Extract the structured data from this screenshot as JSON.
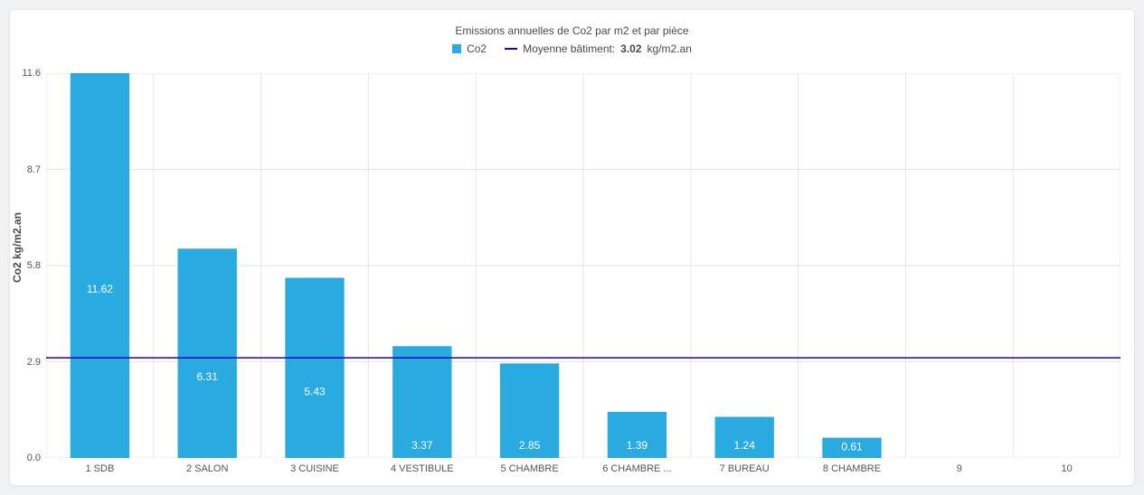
{
  "chart": {
    "type": "bar",
    "title": "Emissions annuelles de Co2 par m2 et par pièce",
    "legend": {
      "series_label": "Co2",
      "avg_label_prefix": "Moyenne bâtiment:",
      "avg_value": "3.02",
      "avg_unit": "kg/m2.an"
    },
    "ylabel": "Co2 kg/m2.an",
    "ylim": [
      0.0,
      11.6
    ],
    "yticks": [
      0.0,
      2.9,
      5.8,
      8.7,
      11.6
    ],
    "categories": [
      "1 SDB",
      "2 SALON",
      "3 CUISINE",
      "4 VESTIBULE",
      "5 CHAMBRE",
      "6 CHAMBRE ...",
      "7 BUREAU",
      "8 CHAMBRE",
      "9",
      "10"
    ],
    "values": [
      11.62,
      6.31,
      5.43,
      3.37,
      2.85,
      1.39,
      1.24,
      0.61,
      0,
      0
    ],
    "value_labels": [
      "11.62",
      "6.31",
      "5.43",
      "3.37",
      "2.85",
      "1.39",
      "1.24",
      "0.61",
      "",
      ""
    ],
    "average_line": 3.02,
    "colors": {
      "bar": "#29abe2",
      "avg_line": "#1d00c4",
      "grid": "#e6e6e6",
      "axis": "#cfcfcf",
      "background": "#ffffff",
      "text": "#4a4a4a",
      "bar_label": "#ffffff"
    },
    "bar_width_ratio": 0.55,
    "font_family": "Segoe UI, Arial, sans-serif",
    "title_fontsize": 12,
    "label_fontsize": 11
  }
}
